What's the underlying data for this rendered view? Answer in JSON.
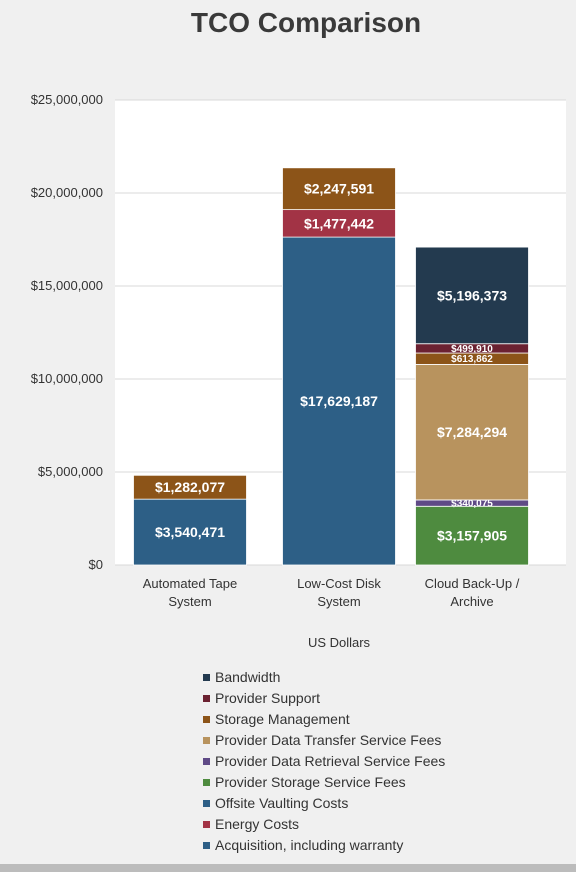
{
  "chart_data": {
    "type": "bar",
    "stacked": true,
    "title": "TCO Comparison",
    "xlabel": "US Dollars",
    "ylabel": "",
    "ylim": [
      0,
      25000000
    ],
    "yticks": [
      0,
      5000000,
      10000000,
      15000000,
      20000000,
      25000000
    ],
    "ytick_labels": [
      "$0",
      "$5,000,000",
      "$10,000,000",
      "$15,000,000",
      "$20,000,000",
      "$25,000,000"
    ],
    "grid": true,
    "legend_position": "bottom",
    "categories": [
      [
        "Automated Tape",
        "System"
      ],
      [
        "Low-Cost Disk",
        "System"
      ],
      [
        "Cloud Back-Up /",
        "Archive"
      ]
    ],
    "series": [
      {
        "name": "Acquisition, including warranty",
        "color": "#2d5f86",
        "values": [
          3540471,
          17629187,
          0
        ],
        "labels": [
          "$3,540,471",
          "$17,629,187",
          ""
        ]
      },
      {
        "name": "Energy Costs",
        "color": "#a23345",
        "values": [
          0,
          1477442,
          0
        ],
        "labels": [
          "",
          "$1,477,442",
          ""
        ]
      },
      {
        "name": "Offsite Vaulting Costs",
        "color": "#2d5f86",
        "values": [
          0,
          0,
          0
        ],
        "labels": [
          "",
          "",
          ""
        ]
      },
      {
        "name": "Provider Storage Service Fees",
        "color": "#4e8b3f",
        "values": [
          0,
          0,
          3157905
        ],
        "labels": [
          "",
          "",
          "$3,157,905"
        ]
      },
      {
        "name": "Provider Data Retrieval Service Fees",
        "color": "#5f4a86",
        "values": [
          0,
          0,
          340075
        ],
        "labels": [
          "",
          "",
          "$340,075"
        ]
      },
      {
        "name": "Provider Data Transfer Service Fees",
        "color": "#b8935e",
        "values": [
          0,
          0,
          7284294
        ],
        "labels": [
          "",
          "",
          "$7,284,294"
        ]
      },
      {
        "name": "Storage Management",
        "color": "#8c5418",
        "values": [
          1282077,
          2247591,
          613862
        ],
        "labels": [
          "$1,282,077",
          "$2,247,591",
          "$613,862"
        ]
      },
      {
        "name": "Provider Support",
        "color": "#6b2131",
        "values": [
          0,
          0,
          499910
        ],
        "labels": [
          "",
          "",
          "$499,910"
        ]
      },
      {
        "name": "Bandwidth",
        "color": "#233a4f",
        "values": [
          0,
          0,
          5196373
        ],
        "labels": [
          "",
          "",
          "$5,196,373"
        ]
      }
    ],
    "legend_order": [
      "Bandwidth",
      "Provider Support",
      "Storage Management",
      "Provider Data Transfer Service Fees",
      "Provider Data Retrieval Service Fees",
      "Provider Storage Service Fees",
      "Offsite Vaulting Costs",
      "Energy Costs",
      "Acquisition, including warranty"
    ],
    "colors": {
      "plot_background": "#ffffff",
      "page_background": "#f0f0f0",
      "gridline": "#d9d9d9"
    }
  }
}
